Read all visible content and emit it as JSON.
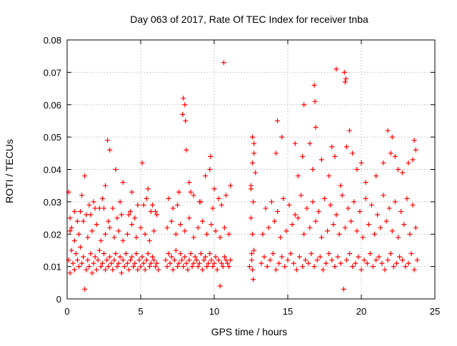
{
  "chart_data": {
    "type": "scatter",
    "title": "Day 063 of 2017, Rate Of TEC Index for receiver tnba",
    "xlabel": "GPS time / hours",
    "ylabel": "ROTI / TECUs",
    "xlim": [
      0,
      25
    ],
    "ylim": [
      0,
      0.08
    ],
    "x_ticks": [
      0,
      5,
      10,
      15,
      20,
      25
    ],
    "y_ticks": [
      0,
      0.01,
      0.02,
      0.03,
      0.04,
      0.05,
      0.06,
      0.07,
      0.08
    ],
    "x_tick_labels": [
      "0",
      "5",
      "10",
      "15",
      "20",
      "25"
    ],
    "y_tick_labels": [
      "0",
      "0.01",
      "0.02",
      "0.03",
      "0.04",
      "0.05",
      "0.06",
      "0.07",
      "0.08"
    ],
    "grid": true,
    "marker": "+",
    "color": "#ff0000",
    "series": [
      {
        "x": [
          0.1,
          0.1,
          0.2,
          0.2,
          0.3,
          0.4,
          0.5,
          0.6,
          0.7,
          0.8,
          0.9,
          1.0,
          1.1,
          1.2,
          1.3,
          1.4,
          1.5,
          1.6,
          1.7,
          1.8,
          1.9,
          2.0,
          2.1,
          2.2,
          2.3,
          2.4,
          2.5,
          2.6,
          2.7,
          2.8,
          2.9,
          3.0,
          3.1,
          3.2,
          3.3,
          3.4,
          3.5,
          3.6,
          3.7,
          3.8,
          3.9,
          4.0,
          4.1,
          4.2,
          4.3,
          4.4,
          4.5,
          4.6,
          4.7,
          4.8,
          4.9,
          5.0,
          5.1,
          5.2,
          5.3,
          5.4,
          5.5,
          5.6,
          5.7,
          5.8,
          5.9,
          6.0,
          6.1,
          6.2,
          0.3,
          0.5,
          0.8,
          1.1,
          1.4,
          1.7,
          2.0,
          2.3,
          2.6,
          2.9,
          3.2,
          3.5,
          3.8,
          4.1,
          4.4,
          4.7,
          5.0,
          5.3,
          5.6,
          5.9,
          1.2,
          1.8,
          2.2,
          2.6,
          2.75,
          2.9,
          3.3,
          3.8,
          4.4,
          5.1,
          5.5,
          5.8,
          0.5,
          1.0,
          1.5,
          2.4,
          3.1,
          3.6,
          4.2,
          4.8,
          5.4,
          6.0,
          0.2,
          0.9,
          1.6,
          2.5,
          3.4,
          4.3,
          5.2,
          6.1,
          0.7,
          1.3,
          1.9,
          2.8,
          3.7,
          4.6,
          5.7,
          6.7,
          6.8,
          6.9,
          7.0,
          7.1,
          7.2,
          7.3,
          7.4,
          7.5,
          7.6,
          7.7,
          7.8,
          7.9,
          8.0,
          8.1,
          8.2,
          8.3,
          8.4,
          8.5,
          8.6,
          8.7,
          8.8,
          8.9,
          9.0,
          9.1,
          9.2,
          9.3,
          9.4,
          9.5,
          9.6,
          9.7,
          9.8,
          9.9,
          10.0,
          10.1,
          10.2,
          10.3,
          10.4,
          10.5,
          10.6,
          10.7,
          10.8,
          10.9,
          11.0,
          11.1,
          6.8,
          7.1,
          7.4,
          7.7,
          8.0,
          8.3,
          8.6,
          8.9,
          9.2,
          9.5,
          9.8,
          10.1,
          10.4,
          10.7,
          11.0,
          7.2,
          7.6,
          7.85,
          7.9,
          8.0,
          8.05,
          8.1,
          8.3,
          8.6,
          9.0,
          9.4,
          9.7,
          9.75,
          10.0,
          10.3,
          10.5,
          10.65,
          11.1,
          6.9,
          7.5,
          8.4,
          9.1,
          9.9,
          10.8,
          12.4,
          12.5,
          12.6,
          12.7,
          12.8,
          12.5,
          12.6,
          12.7,
          12.55,
          12.65,
          12.5,
          12.6,
          12.7,
          12.6,
          12.65,
          12.55,
          13.2,
          13.4,
          13.6,
          13.8,
          14.0,
          14.2,
          14.4,
          14.6,
          14.8,
          15.0,
          15.2,
          15.4,
          15.6,
          15.8,
          16.0,
          16.2,
          16.4,
          16.6,
          16.8,
          17.0,
          17.2,
          17.4,
          17.6,
          17.8,
          18.0,
          18.2,
          18.4,
          18.6,
          18.8,
          19.0,
          19.2,
          19.4,
          19.6,
          19.8,
          20.0,
          20.2,
          20.4,
          20.6,
          20.8,
          21.0,
          21.2,
          21.4,
          21.6,
          21.8,
          22.0,
          22.2,
          22.4,
          22.6,
          22.8,
          23.0,
          23.2,
          23.4,
          23.6,
          23.8,
          13.3,
          13.7,
          14.1,
          14.5,
          14.9,
          15.3,
          15.7,
          16.1,
          16.5,
          16.9,
          17.3,
          17.7,
          18.1,
          18.5,
          18.9,
          19.3,
          19.7,
          20.1,
          20.5,
          20.9,
          21.3,
          21.7,
          22.1,
          22.5,
          22.9,
          23.3,
          23.7,
          13.5,
          13.9,
          14.3,
          14.7,
          15.1,
          15.5,
          15.9,
          16.3,
          16.7,
          17.1,
          17.5,
          17.9,
          18.3,
          18.7,
          19.1,
          19.5,
          19.9,
          20.3,
          20.7,
          21.1,
          21.5,
          21.9,
          22.3,
          22.7,
          23.1,
          23.5,
          14.2,
          14.3,
          14.6,
          15.5,
          15.7,
          16.0,
          16.1,
          16.5,
          16.7,
          16.8,
          16.85,
          16.9,
          17.3,
          17.8,
          18.0,
          18.2,
          18.3,
          18.6,
          18.85,
          18.9,
          18.95,
          19.0,
          19.2,
          19.4,
          19.7,
          20.0,
          20.3,
          21.0,
          21.5,
          21.8,
          22.0,
          22.1,
          22.3,
          22.5,
          22.8,
          23.2,
          23.5,
          23.6,
          23.7
        ],
        "y": [
          0.033,
          0.012,
          0.021,
          0.008,
          0.015,
          0.011,
          0.009,
          0.014,
          0.012,
          0.01,
          0.016,
          0.011,
          0.013,
          0.003,
          0.009,
          0.012,
          0.01,
          0.014,
          0.008,
          0.011,
          0.013,
          0.009,
          0.012,
          0.015,
          0.01,
          0.011,
          0.014,
          0.009,
          0.012,
          0.01,
          0.013,
          0.011,
          0.009,
          0.012,
          0.014,
          0.01,
          0.011,
          0.013,
          0.008,
          0.012,
          0.01,
          0.014,
          0.011,
          0.009,
          0.012,
          0.013,
          0.01,
          0.011,
          0.014,
          0.009,
          0.012,
          0.01,
          0.013,
          0.011,
          0.009,
          0.012,
          0.014,
          0.01,
          0.011,
          0.013,
          0.012,
          0.01,
          0.011,
          0.009,
          0.022,
          0.018,
          0.02,
          0.024,
          0.019,
          0.021,
          0.023,
          0.018,
          0.02,
          0.022,
          0.019,
          0.021,
          0.018,
          0.02,
          0.023,
          0.019,
          0.022,
          0.02,
          0.018,
          0.021,
          0.038,
          0.03,
          0.028,
          0.035,
          0.049,
          0.046,
          0.04,
          0.036,
          0.033,
          0.042,
          0.034,
          0.029,
          0.027,
          0.032,
          0.029,
          0.031,
          0.028,
          0.03,
          0.026,
          0.029,
          0.031,
          0.027,
          0.025,
          0.027,
          0.026,
          0.028,
          0.025,
          0.027,
          0.029,
          0.026,
          0.024,
          0.026,
          0.028,
          0.024,
          0.026,
          0.025,
          0.027,
          0.012,
          0.01,
          0.014,
          0.011,
          0.013,
          0.009,
          0.012,
          0.015,
          0.01,
          0.011,
          0.014,
          0.012,
          0.01,
          0.013,
          0.011,
          0.009,
          0.012,
          0.014,
          0.01,
          0.011,
          0.013,
          0.012,
          0.01,
          0.011,
          0.014,
          0.009,
          0.012,
          0.013,
          0.01,
          0.011,
          0.014,
          0.012,
          0.01,
          0.011,
          0.013,
          0.009,
          0.012,
          0.004,
          0.011,
          0.01,
          0.013,
          0.012,
          0.011,
          0.01,
          0.012,
          0.022,
          0.024,
          0.02,
          0.023,
          0.021,
          0.025,
          0.019,
          0.022,
          0.024,
          0.02,
          0.023,
          0.021,
          0.019,
          0.022,
          0.02,
          0.028,
          0.033,
          0.057,
          0.062,
          0.06,
          0.055,
          0.046,
          0.036,
          0.032,
          0.03,
          0.038,
          0.04,
          0.044,
          0.034,
          0.031,
          0.029,
          0.073,
          0.035,
          0.031,
          0.029,
          0.033,
          0.03,
          0.028,
          0.032,
          0.01,
          0.034,
          0.05,
          0.045,
          0.039,
          0.025,
          0.02,
          0.015,
          0.012,
          0.03,
          0.035,
          0.042,
          0.048,
          0.009,
          0.006,
          0.014,
          0.011,
          0.013,
          0.01,
          0.012,
          0.014,
          0.009,
          0.011,
          0.013,
          0.01,
          0.012,
          0.014,
          0.011,
          0.009,
          0.013,
          0.01,
          0.012,
          0.011,
          0.014,
          0.01,
          0.012,
          0.013,
          0.009,
          0.011,
          0.014,
          0.012,
          0.01,
          0.013,
          0.011,
          0.003,
          0.012,
          0.014,
          0.01,
          0.011,
          0.013,
          0.009,
          0.012,
          0.011,
          0.014,
          0.01,
          0.012,
          0.013,
          0.011,
          0.009,
          0.012,
          0.014,
          0.01,
          0.011,
          0.013,
          0.012,
          0.01,
          0.011,
          0.014,
          0.009,
          0.012,
          0.02,
          0.022,
          0.024,
          0.019,
          0.021,
          0.023,
          0.025,
          0.02,
          0.022,
          0.024,
          0.019,
          0.021,
          0.023,
          0.02,
          0.022,
          0.024,
          0.021,
          0.019,
          0.023,
          0.02,
          0.022,
          0.024,
          0.021,
          0.019,
          0.023,
          0.02,
          0.022,
          0.028,
          0.03,
          0.027,
          0.031,
          0.029,
          0.026,
          0.032,
          0.028,
          0.03,
          0.027,
          0.031,
          0.029,
          0.026,
          0.032,
          0.028,
          0.03,
          0.027,
          0.031,
          0.029,
          0.026,
          0.032,
          0.028,
          0.03,
          0.027,
          0.031,
          0.029,
          0.045,
          0.055,
          0.05,
          0.048,
          0.038,
          0.044,
          0.06,
          0.048,
          0.04,
          0.066,
          0.061,
          0.053,
          0.043,
          0.038,
          0.047,
          0.044,
          0.071,
          0.035,
          0.07,
          0.067,
          0.068,
          0.047,
          0.052,
          0.045,
          0.04,
          0.042,
          0.036,
          0.038,
          0.042,
          0.052,
          0.045,
          0.05,
          0.044,
          0.04,
          0.039,
          0.042,
          0.043,
          0.049,
          0.046
        ]
      }
    ]
  }
}
